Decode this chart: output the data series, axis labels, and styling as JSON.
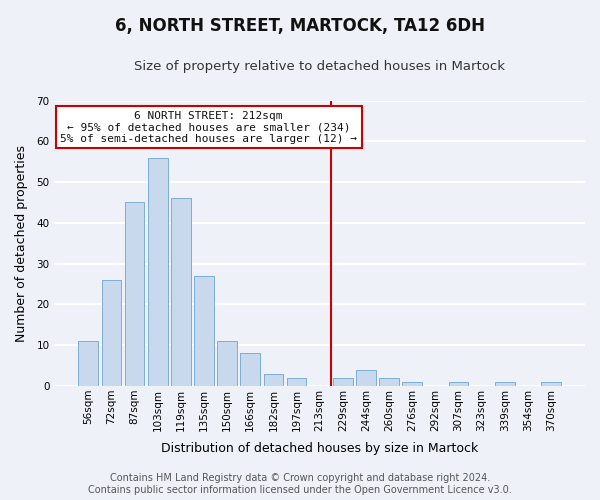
{
  "title": "6, NORTH STREET, MARTOCK, TA12 6DH",
  "subtitle": "Size of property relative to detached houses in Martock",
  "xlabel": "Distribution of detached houses by size in Martock",
  "ylabel": "Number of detached properties",
  "bar_labels": [
    "56sqm",
    "72sqm",
    "87sqm",
    "103sqm",
    "119sqm",
    "135sqm",
    "150sqm",
    "166sqm",
    "182sqm",
    "197sqm",
    "213sqm",
    "229sqm",
    "244sqm",
    "260sqm",
    "276sqm",
    "292sqm",
    "307sqm",
    "323sqm",
    "339sqm",
    "354sqm",
    "370sqm"
  ],
  "bar_values": [
    11,
    26,
    45,
    56,
    46,
    27,
    11,
    8,
    3,
    2,
    0,
    2,
    4,
    2,
    1,
    0,
    1,
    0,
    1,
    0,
    1
  ],
  "bar_color": "#c8d9ed",
  "bar_edge_color": "#7bafd4",
  "ylim": [
    0,
    70
  ],
  "yticks": [
    0,
    10,
    20,
    30,
    40,
    50,
    60,
    70
  ],
  "property_line_x": 10.5,
  "property_line_label": "6 NORTH STREET: 212sqm",
  "annotation_line1": "← 95% of detached houses are smaller (234)",
  "annotation_line2": "5% of semi-detached houses are larger (12) →",
  "annotation_box_color": "#ffffff",
  "annotation_box_edge_color": "#cc0000",
  "property_line_color": "#cc0000",
  "footer_line1": "Contains HM Land Registry data © Crown copyright and database right 2024.",
  "footer_line2": "Contains public sector information licensed under the Open Government Licence v3.0.",
  "background_color": "#eef2f8",
  "grid_color": "#ffffff",
  "title_fontsize": 12,
  "subtitle_fontsize": 9.5,
  "axis_label_fontsize": 9,
  "tick_fontsize": 7.5,
  "annotation_fontsize": 8,
  "footer_fontsize": 7
}
